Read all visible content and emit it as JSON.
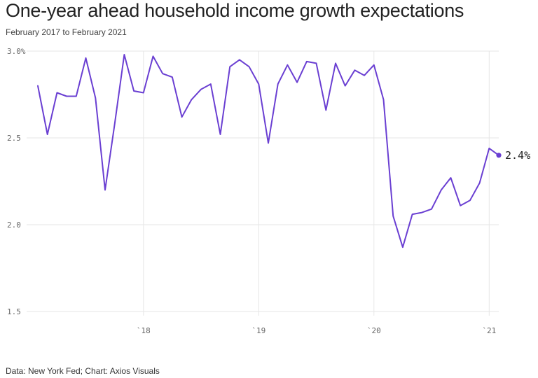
{
  "title": "One-year ahead household income growth expectations",
  "subtitle": "February 2017 to February 2021",
  "source": "Data: New York Fed; Chart: Axios Visuals",
  "end_label": "2.4%",
  "colors": {
    "line": "#6a3fd2",
    "grid": "#e6e6e6",
    "text": "#222222"
  },
  "chart_data": {
    "type": "line",
    "title": "One-year ahead household income growth expectations",
    "subtitle": "February 2017 to February 2021",
    "xlabel": "",
    "ylabel": "",
    "ylim": [
      1.5,
      3.0
    ],
    "xlim": [
      "2017-02",
      "2021-02"
    ],
    "grid": true,
    "y_ticks": [
      {
        "value": 3.0,
        "label": "3.0%"
      },
      {
        "value": 2.5,
        "label": "2.5"
      },
      {
        "value": 2.0,
        "label": "2.0"
      },
      {
        "value": 1.5,
        "label": "1.5"
      }
    ],
    "x_ticks": [
      {
        "value": "2018-01",
        "label": "`18"
      },
      {
        "value": "2019-01",
        "label": "`19"
      },
      {
        "value": "2020-01",
        "label": "`20"
      },
      {
        "value": "2021-01",
        "label": "`21"
      }
    ],
    "x": [
      "2017-02",
      "2017-03",
      "2017-04",
      "2017-05",
      "2017-06",
      "2017-07",
      "2017-08",
      "2017-09",
      "2017-10",
      "2017-11",
      "2017-12",
      "2018-01",
      "2018-02",
      "2018-03",
      "2018-04",
      "2018-05",
      "2018-06",
      "2018-07",
      "2018-08",
      "2018-09",
      "2018-10",
      "2018-11",
      "2018-12",
      "2019-01",
      "2019-02",
      "2019-03",
      "2019-04",
      "2019-05",
      "2019-06",
      "2019-07",
      "2019-08",
      "2019-09",
      "2019-10",
      "2019-11",
      "2019-12",
      "2020-01",
      "2020-02",
      "2020-03",
      "2020-04",
      "2020-05",
      "2020-06",
      "2020-07",
      "2020-08",
      "2020-09",
      "2020-10",
      "2020-11",
      "2020-12",
      "2021-01",
      "2021-02"
    ],
    "values": [
      2.8,
      2.52,
      2.76,
      2.74,
      2.74,
      2.96,
      2.73,
      2.2,
      2.58,
      2.98,
      2.77,
      2.76,
      2.97,
      2.87,
      2.85,
      2.62,
      2.72,
      2.78,
      2.81,
      2.52,
      2.91,
      2.95,
      2.91,
      2.81,
      2.47,
      2.81,
      2.92,
      2.82,
      2.94,
      2.93,
      2.66,
      2.93,
      2.8,
      2.89,
      2.86,
      2.92,
      2.72,
      2.05,
      1.87,
      2.06,
      2.07,
      2.09,
      2.2,
      2.27,
      2.11,
      2.14,
      2.24,
      2.44,
      2.4
    ]
  }
}
